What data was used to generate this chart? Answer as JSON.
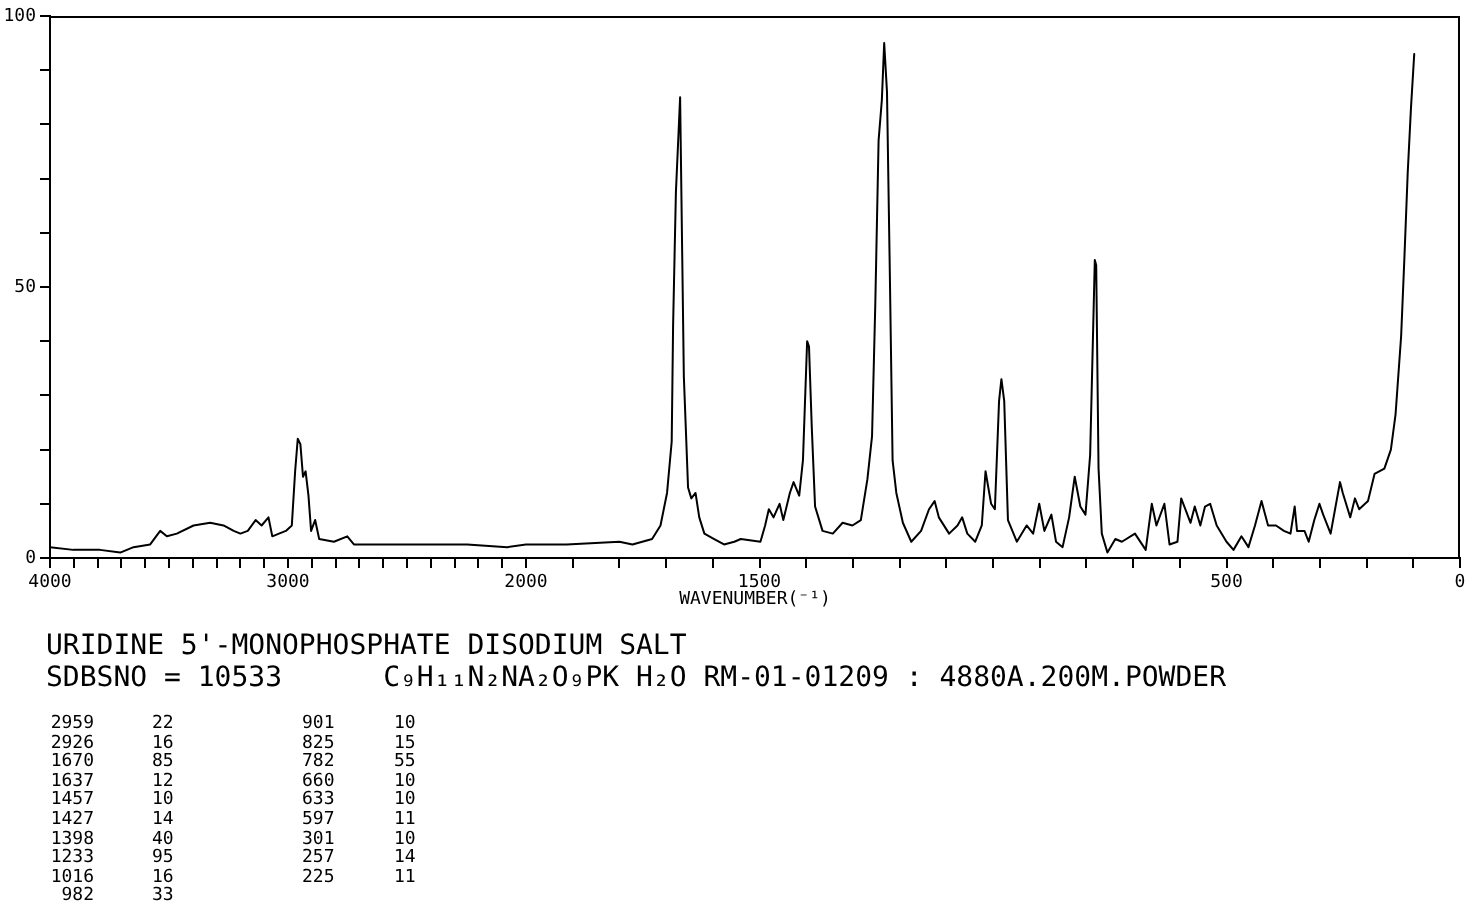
{
  "chart_data": [
    {
      "type": "line",
      "title": "URIDINE 5'-MONOPHOSPHATE DISODIUM SALT",
      "subtitle": "SDBSNO = 10533      C₉H₁₁N₂NA₂O₉PK H₂O RM-01-01209 : 4880A.200M.POWDER",
      "annotations": [
        "2959",
        "22",
        "901",
        "10",
        "2926",
        "16",
        "825",
        "15",
        "1670",
        "85",
        "782",
        "55",
        "1637",
        "12",
        "660",
        "10",
        "1457",
        "10",
        "633",
        "10",
        "1427",
        "14",
        "597",
        "11",
        "1398",
        "40",
        "301",
        "10",
        "1233",
        "95",
        "257",
        "14",
        "1016",
        "16",
        "225",
        "11",
        "982",
        "33"
      ],
      "x": [
        4000,
        3902,
        3790,
        3705,
        3649,
        3579,
        3537,
        3509,
        3467,
        3397,
        3327,
        3271,
        3228,
        3200,
        3169,
        3136,
        3111,
        3082,
        3066,
        3038,
        3009,
        2984,
        2970,
        2959,
        2948,
        2937,
        2926,
        2914,
        2903,
        2886,
        2869,
        2807,
        2751,
        2723,
        2527,
        2247,
        2079,
        2000
      ],
      "values": [
        2,
        1.5,
        1.5,
        1,
        2,
        2.5,
        5,
        4,
        4.5,
        6,
        6.5,
        6,
        5,
        4.5,
        5,
        7,
        6,
        7.5,
        4,
        4.5,
        5,
        6,
        16,
        22,
        21,
        15,
        16,
        11.5,
        5,
        7,
        3.5,
        3,
        4,
        2.5,
        2.5,
        2.5,
        2,
        2.5
      ],
      "color": "#000000",
      "xlim": [
        4000,
        2000
      ],
      "xticks": [
        4000,
        {
          "value": 3900,
          "label": null
        },
        {
          "value": 3800,
          "label": null
        },
        {
          "value": 3700,
          "label": null
        },
        {
          "value": 3600,
          "label": null
        },
        {
          "value": 3500,
          "label": null
        },
        {
          "value": 3400,
          "label": null
        },
        {
          "value": 3300,
          "label": null
        },
        {
          "value": 3200,
          "label": null
        },
        {
          "value": 3100,
          "label": null
        },
        3000,
        {
          "value": 2900,
          "label": null
        },
        {
          "value": 2800,
          "label": null
        },
        {
          "value": 2700,
          "label": null
        },
        {
          "value": 2600,
          "label": null
        },
        {
          "value": 2500,
          "label": null
        },
        {
          "value": 2400,
          "label": null
        },
        {
          "value": 2300,
          "label": null
        },
        {
          "value": 2200,
          "label": null
        },
        {
          "value": 2100,
          "label": null
        },
        2000
      ],
      "ylim": [
        0,
        100
      ],
      "yticks": [
        0,
        {
          "value": 10,
          "label": null
        },
        {
          "value": 20,
          "label": null
        },
        {
          "value": 30,
          "label": null
        },
        {
          "value": 40,
          "label": null
        },
        50,
        {
          "value": 60,
          "label": null
        },
        {
          "value": 70,
          "label": null
        },
        {
          "value": 80,
          "label": null
        },
        {
          "value": 90,
          "label": null
        },
        100
      ]
    },
    {
      "type": "line",
      "xlabel": "WAVENUMBER(⁻¹)",
      "x": [
        2000,
        1913,
        1800,
        1772,
        1730,
        1712,
        1698,
        1688,
        1685,
        1679,
        1670,
        1662,
        1653,
        1646,
        1637,
        1629,
        1618,
        1597,
        1576,
        1554,
        1540,
        1498,
        1488,
        1480,
        1470,
        1457,
        1449,
        1435,
        1427,
        1415,
        1407,
        1398,
        1394,
        1388,
        1381,
        1365,
        1343,
        1322,
        1301,
        1283,
        1269,
        1259,
        1252,
        1245,
        1238,
        1233,
        1227,
        1221,
        1215,
        1207,
        1193,
        1175,
        1154,
        1137,
        1125,
        1116,
        1094,
        1076,
        1066,
        1055,
        1038,
        1024,
        1016,
        1004,
        996,
        987,
        982,
        976,
        968,
        949,
        928,
        914,
        901,
        890,
        875,
        865,
        851,
        837,
        825,
        813,
        802,
        792,
        782,
        779,
        774,
        767,
        755,
        738,
        724,
        696,
        673,
        660,
        650,
        633,
        622,
        605,
        597,
        577,
        568,
        556,
        546,
        535,
        521,
        500,
        485,
        468,
        453,
        439,
        425,
        411,
        394,
        377,
        363,
        354,
        349,
        333,
        324,
        312,
        301,
        293,
        277,
        257,
        251,
        235,
        225,
        216,
        197,
        183,
        162,
        148,
        138,
        126,
        119,
        112,
        105,
        98
      ],
      "values": [
        2.5,
        2.5,
        3,
        2.5,
        3.5,
        6,
        12,
        21.5,
        43,
        67.5,
        85,
        33.5,
        13,
        11,
        12,
        7.5,
        4.5,
        3.5,
        2.5,
        3,
        3.5,
        3,
        6,
        9,
        7.5,
        10,
        7,
        12,
        14,
        11.5,
        18,
        40,
        39,
        24,
        9.5,
        5,
        4.5,
        6.5,
        6,
        7,
        14.5,
        22.5,
        47,
        77,
        84.5,
        95,
        86,
        53,
        18,
        12,
        6.5,
        3,
        5,
        9,
        10.5,
        7.5,
        4.5,
        6,
        7.5,
        4.5,
        3,
        6,
        16,
        10,
        9,
        29,
        33,
        29,
        7,
        3,
        6,
        4.5,
        10,
        5,
        8,
        3,
        2,
        7.5,
        15,
        9.5,
        8,
        19,
        55,
        54,
        16.5,
        4.5,
        1,
        3.5,
        3,
        4.5,
        1.5,
        10,
        6,
        10,
        2.5,
        3,
        11,
        6.5,
        9.5,
        6,
        9.5,
        10,
        6,
        3,
        1.5,
        4,
        2,
        6,
        10.5,
        6,
        6,
        5,
        4.5,
        9.5,
        5,
        5,
        3,
        7,
        10,
        8,
        4.5,
        14,
        12,
        7.5,
        11,
        9,
        10.5,
        15.5,
        16.5,
        20,
        26.5,
        41,
        55.5,
        71,
        83,
        93
      ],
      "color": "#000000",
      "xlim": [
        2000,
        0
      ],
      "xticks": [
        {
          "value": 1900,
          "label": null
        },
        {
          "value": 1800,
          "label": null
        },
        {
          "value": 1700,
          "label": null
        },
        {
          "value": 1600,
          "label": null
        },
        1500,
        {
          "value": 1400,
          "label": null
        },
        {
          "value": 1300,
          "label": null
        },
        {
          "value": 1200,
          "label": null
        },
        {
          "value": 1100,
          "label": null
        },
        {
          "value": 1000,
          "label": null
        },
        {
          "value": 900,
          "label": null
        },
        {
          "value": 800,
          "label": null
        },
        {
          "value": 700,
          "label": null
        },
        {
          "value": 600,
          "label": null
        },
        500,
        {
          "value": 400,
          "label": null
        },
        {
          "value": 300,
          "label": null
        },
        {
          "value": 200,
          "label": null
        },
        {
          "value": 100,
          "label": null
        },
        0
      ],
      "ylim": [
        0,
        100
      ],
      "tick_labels": "x"
    }
  ]
}
